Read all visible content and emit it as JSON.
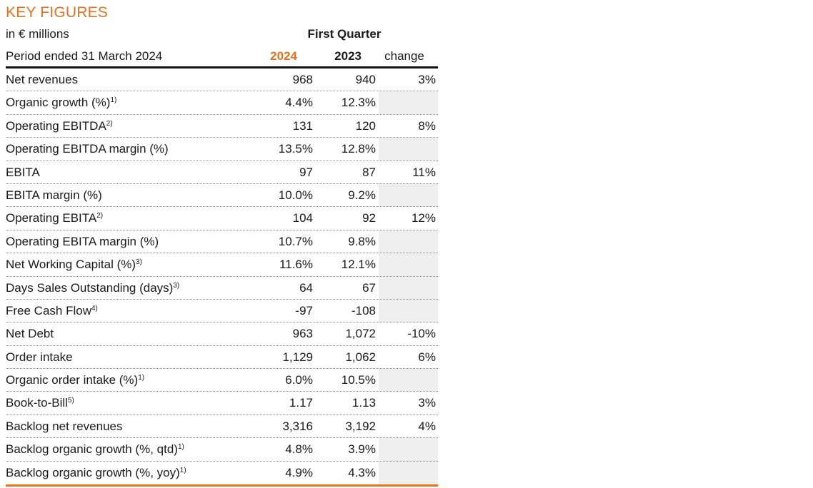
{
  "title": "KEY FIGURES",
  "header": {
    "units": "in € millions",
    "period": "Period ended 31 March 2024",
    "group": "First Quarter",
    "col_current": "2024",
    "col_prior": "2023",
    "col_change": "change"
  },
  "colors": {
    "accent": "#e8711e",
    "rule": "#111111",
    "empty_cell": "#efefef"
  },
  "rows": [
    {
      "label": "Net revenues",
      "note": "",
      "v2024": "968",
      "v2023": "940",
      "change": "3%"
    },
    {
      "label": "Organic growth (%)",
      "note": "1)",
      "v2024": "4.4%",
      "v2023": "12.3%",
      "change": ""
    },
    {
      "label": "Operating EBITDA",
      "note": "2)",
      "v2024": "131",
      "v2023": "120",
      "change": "8%"
    },
    {
      "label": "Operating EBITDA margin (%)",
      "note": "",
      "v2024": "13.5%",
      "v2023": "12.8%",
      "change": ""
    },
    {
      "label": "EBITA",
      "note": "",
      "v2024": "97",
      "v2023": "87",
      "change": "11%"
    },
    {
      "label": "EBITA margin (%)",
      "note": "",
      "v2024": "10.0%",
      "v2023": "9.2%",
      "change": ""
    },
    {
      "label": "Operating EBITA",
      "note": "2)",
      "v2024": "104",
      "v2023": "92",
      "change": "12%"
    },
    {
      "label": "Operating EBITA margin (%)",
      "note": "",
      "v2024": "10.7%",
      "v2023": "9.8%",
      "change": ""
    },
    {
      "label": "Net Working Capital (%)",
      "note": "3)",
      "v2024": "11.6%",
      "v2023": "12.1%",
      "change": ""
    },
    {
      "label": "Days Sales Outstanding (days)",
      "note": "3)",
      "v2024": "64",
      "v2023": "67",
      "change": ""
    },
    {
      "label": "Free Cash Flow",
      "note": "4)",
      "v2024": "-97",
      "v2023": "-108",
      "change": ""
    },
    {
      "label": "Net Debt",
      "note": "",
      "v2024": "963",
      "v2023": "1,072",
      "change": "-10%"
    },
    {
      "label": "Order intake",
      "note": "",
      "v2024": "1,129",
      "v2023": "1,062",
      "change": "6%"
    },
    {
      "label": "Organic order intake (%)",
      "note": "1)",
      "v2024": "6.0%",
      "v2023": "10.5%",
      "change": ""
    },
    {
      "label": "Book-to-Bill",
      "note": "5)",
      "v2024": "1.17",
      "v2023": "1.13",
      "change": "3%"
    },
    {
      "label": "Backlog net revenues",
      "note": "",
      "v2024": "3,316",
      "v2023": "3,192",
      "change": "4%"
    },
    {
      "label": "Backlog organic growth (%, qtd)",
      "note": "1)",
      "v2024": "4.8%",
      "v2023": "3.9%",
      "change": ""
    },
    {
      "label": "Backlog organic growth (%, yoy)",
      "note": "1)",
      "v2024": "4.9%",
      "v2023": "4.3%",
      "change": ""
    }
  ]
}
